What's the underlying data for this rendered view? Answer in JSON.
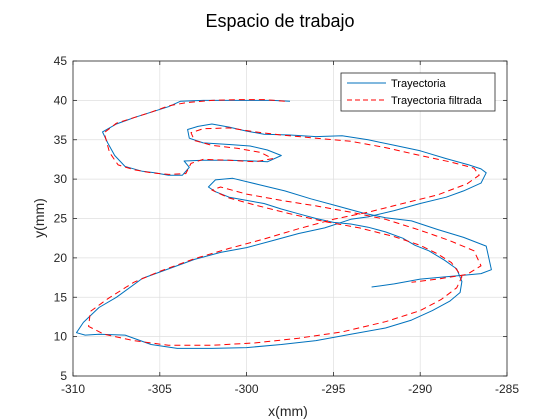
{
  "chart_data": {
    "type": "line",
    "title": "Espacio de trabajo",
    "xlabel": "x(mm)",
    "ylabel": "y(mm)",
    "xlim": [
      -310,
      -285
    ],
    "ylim": [
      5,
      45
    ],
    "xticks": [
      -310,
      -305,
      -300,
      -295,
      -290,
      -285
    ],
    "yticks": [
      5,
      10,
      15,
      20,
      25,
      30,
      35,
      40,
      45
    ],
    "grid": true,
    "legend_position": "top-right",
    "series": [
      {
        "name": "Trayectoria",
        "color": "#0072BD",
        "style": "solid",
        "x": [
          -297.5,
          -298.5,
          -300.5,
          -302.5,
          -303.8,
          -304.5,
          -305.5,
          -306.5,
          -307.5,
          -308.3,
          -308.0,
          -307.6,
          -307.0,
          -306.0,
          -305.3,
          -304.5,
          -303.7,
          -303.3,
          -303.6,
          -302.5,
          -301.0,
          -299.6,
          -298.8,
          -298.0,
          -298.8,
          -299.8,
          -301.0,
          -302.5,
          -303.3,
          -303.4,
          -302.8,
          -302.0,
          -301.0,
          -300.0,
          -299.0,
          -297.5,
          -296.0,
          -294.5,
          -293.0,
          -291.5,
          -290.0,
          -288.5,
          -287.2,
          -286.5,
          -286.2,
          -286.5,
          -287.5,
          -288.5,
          -290.0,
          -291.5,
          -293.0,
          -294.0,
          -295.5,
          -297.0,
          -298.5,
          -300.0,
          -301.5,
          -303.0,
          -304.5,
          -306.0,
          -307.5,
          -308.5,
          -309.4,
          -309.8,
          -309.3,
          -308.5,
          -307.0,
          -305.5,
          -304.0,
          -302.0,
          -300.0,
          -298.0,
          -296.0,
          -294.0,
          -292.0,
          -290.5,
          -289.3,
          -288.3,
          -287.7,
          -287.6,
          -287.9,
          -288.6,
          -289.5,
          -290.3,
          -291.0,
          -292.0,
          -293.0,
          -294.0,
          -295.0,
          -296.0,
          -297.0,
          -298.0,
          -299.0,
          -300.0,
          -301.0,
          -301.8,
          -302.2,
          -301.8,
          -300.8,
          -299.3,
          -297.8,
          -296.3,
          -294.8,
          -293.3,
          -292.0,
          -290.5,
          -289.0,
          -287.5,
          -286.2,
          -285.9,
          -286.5,
          -287.5,
          -288.5,
          -290.0,
          -291.5,
          -292.8
        ],
        "y": [
          39.9,
          40.0,
          40.0,
          40.0,
          39.9,
          39.2,
          38.5,
          37.8,
          37.0,
          36.0,
          34.6,
          33.0,
          31.6,
          31.0,
          30.8,
          30.5,
          30.5,
          31.5,
          32.3,
          32.4,
          32.4,
          32.3,
          32.2,
          33.0,
          33.7,
          34.2,
          34.4,
          34.6,
          35.2,
          36.3,
          36.7,
          37.0,
          36.6,
          36.1,
          35.7,
          35.6,
          35.4,
          35.5,
          35.0,
          34.3,
          33.6,
          32.6,
          31.8,
          31.3,
          30.8,
          29.5,
          28.5,
          27.7,
          26.9,
          26.0,
          25.2,
          24.9,
          23.8,
          23.1,
          22.2,
          21.3,
          20.7,
          19.8,
          18.6,
          17.4,
          15.0,
          13.7,
          11.8,
          10.5,
          10.2,
          10.3,
          10.2,
          9.0,
          8.5,
          8.5,
          8.6,
          9.0,
          9.5,
          10.3,
          11.1,
          12.1,
          13.3,
          14.5,
          15.6,
          17.0,
          18.6,
          19.7,
          20.9,
          21.6,
          22.5,
          23.3,
          23.9,
          24.3,
          24.5,
          25.0,
          25.6,
          26.2,
          26.9,
          27.3,
          27.7,
          28.4,
          29.0,
          29.9,
          30.1,
          29.3,
          28.5,
          27.5,
          26.6,
          25.7,
          25.1,
          24.7,
          23.6,
          22.6,
          21.5,
          18.5,
          18.0,
          17.8,
          17.6,
          17.3,
          16.7,
          16.3
        ]
      },
      {
        "name": "Trayectoria filtrada",
        "color": "#FF0000",
        "style": "dashed",
        "x": [
          -297.8,
          -299.0,
          -300.5,
          -302.0,
          -303.5,
          -304.5,
          -305.5,
          -306.5,
          -307.5,
          -308.2,
          -307.9,
          -307.4,
          -306.5,
          -305.5,
          -304.5,
          -303.5,
          -303.2,
          -302.5,
          -301.0,
          -299.5,
          -298.5,
          -299.2,
          -300.5,
          -302.0,
          -303.0,
          -303.2,
          -302.5,
          -301.0,
          -299.5,
          -298.0,
          -296.0,
          -294.0,
          -292.0,
          -290.0,
          -288.3,
          -286.9,
          -286.6,
          -287.3,
          -289.0,
          -291.0,
          -293.0,
          -295.0,
          -297.0,
          -299.0,
          -301.0,
          -303.0,
          -305.0,
          -306.5,
          -308.0,
          -309.0,
          -309.1,
          -308.2,
          -306.5,
          -304.5,
          -302.0,
          -299.5,
          -297.0,
          -294.5,
          -292.0,
          -290.0,
          -288.8,
          -287.9,
          -287.6,
          -288.2,
          -289.0,
          -290.0,
          -291.5,
          -293.5,
          -295.5,
          -297.5,
          -299.5,
          -301.0,
          -302.0,
          -301.5,
          -300.0,
          -298.0,
          -296.0,
          -294.0,
          -292.0,
          -290.0,
          -288.3,
          -286.9,
          -286.5,
          -287.3,
          -289.0,
          -290.5
        ],
        "y": [
          39.9,
          40.1,
          40.1,
          40.0,
          39.7,
          39.3,
          38.5,
          37.8,
          37.1,
          35.9,
          33.4,
          31.8,
          31.2,
          30.8,
          30.6,
          30.7,
          32.0,
          32.5,
          32.4,
          32.2,
          32.6,
          33.4,
          33.9,
          34.3,
          34.9,
          35.9,
          36.4,
          36.5,
          36.0,
          35.6,
          35.2,
          34.8,
          34.0,
          33.0,
          32.2,
          31.4,
          30.5,
          29.4,
          28.0,
          26.9,
          25.8,
          24.9,
          23.7,
          22.4,
          21.2,
          19.9,
          18.3,
          16.9,
          14.8,
          13.2,
          11.3,
          10.3,
          9.5,
          8.9,
          8.9,
          9.2,
          9.8,
          10.6,
          11.9,
          13.3,
          14.7,
          16.2,
          17.6,
          19.4,
          20.5,
          21.6,
          22.7,
          23.8,
          24.6,
          25.6,
          26.7,
          27.6,
          28.6,
          29.0,
          28.1,
          27.3,
          26.6,
          25.8,
          24.9,
          23.5,
          22.2,
          20.9,
          19.0,
          17.9,
          17.3,
          16.9
        ]
      }
    ]
  }
}
